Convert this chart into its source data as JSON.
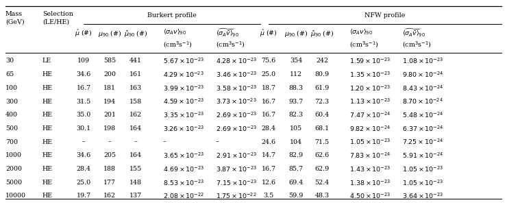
{
  "rows": [
    [
      "30",
      "LE",
      "109",
      "585",
      "441",
      "5.67 \\times 10^{-23}",
      "4.28 \\times 10^{-23}",
      "75.6",
      "354",
      "242",
      "1.59 \\times 10^{-23}",
      "1.08 \\times 10^{-23}"
    ],
    [
      "65",
      "HE",
      "34.6",
      "200",
      "161",
      "4.29 \\times 10^{-23}",
      "3.46 \\times 10^{-23}",
      "25.0",
      "112",
      "80.9",
      "1.35 \\times 10^{-23}",
      "9.80 \\times 10^{-24}"
    ],
    [
      "100",
      "HE",
      "16.7",
      "181",
      "163",
      "3.99 \\times 10^{-23}",
      "3.58 \\times 10^{-23}",
      "18.7",
      "88.3",
      "61.9",
      "1.20 \\times 10^{-23}",
      "8.43 \\times 10^{-24}"
    ],
    [
      "300",
      "HE",
      "31.5",
      "194",
      "158",
      "4.59 \\times 10^{-23}",
      "3.73 \\times 10^{-23}",
      "16.7",
      "93.7",
      "72.3",
      "1.13 \\times 10^{-23}",
      "8.70 \\times 10^{-24}"
    ],
    [
      "400",
      "HE",
      "35.0",
      "201",
      "162",
      "3.35 \\times 10^{-23}",
      "2.69 \\times 10^{-23}",
      "16.7",
      "82.3",
      "60.4",
      "7.47 \\times 10^{-24}",
      "5.48 \\times 10^{-24}"
    ],
    [
      "500",
      "HE",
      "30.1",
      "198",
      "164",
      "3.26 \\times 10^{-23}",
      "2.69 \\times 10^{-23}",
      "28.4",
      "105",
      "68.1",
      "9.82 \\times 10^{-24}",
      "6.37 \\times 10^{-24}"
    ],
    [
      "700",
      "HE",
      "–",
      "–",
      "–",
      "–",
      "–",
      "24.6",
      "104",
      "71.5",
      "1.05 \\times 10^{-23}",
      "7.25 \\times 10^{-24}"
    ],
    [
      "1000",
      "HE",
      "34.6",
      "205",
      "164",
      "3.65 \\times 10^{-23}",
      "2.91 \\times 10^{-23}",
      "14.7",
      "82.9",
      "62.6",
      "7.83 \\times 10^{-24}",
      "5.91 \\times 10^{-24}"
    ],
    [
      "2000",
      "HE",
      "28.4",
      "188",
      "155",
      "4.69 \\times 10^{-23}",
      "3.87 \\times 10^{-23}",
      "16.7",
      "85.7",
      "62.9",
      "1.43 \\times 10^{-23}",
      "1.05 \\times 10^{-23}"
    ],
    [
      "5000",
      "HE",
      "25.0",
      "177",
      "148",
      "8.53 \\times 10^{-23}",
      "7.15 \\times 10^{-23}",
      "12.6",
      "69.4",
      "52.4",
      "1.38 \\times 10^{-23}",
      "1.05 \\times 10^{-23}"
    ],
    [
      "10000",
      "HE",
      "19.7",
      "162",
      "137",
      "2.08 \\times 10^{-22}",
      "1.75 \\times 10^{-22}",
      "3.5",
      "59.9",
      "48.3",
      "4.50 \\times 10^{-23}",
      "3.64 \\times 10^{-23}"
    ]
  ],
  "fig_width": 7.4,
  "fig_height": 3.02,
  "dpi": 100,
  "fontsize": 6.8
}
